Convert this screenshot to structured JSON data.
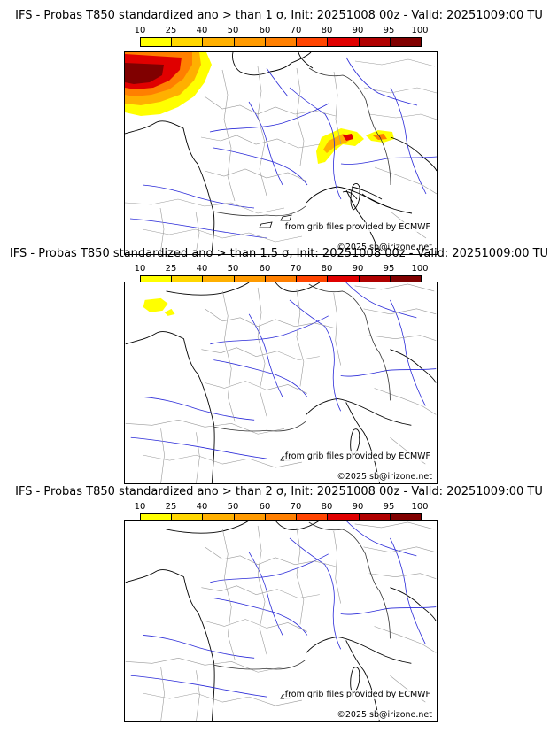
{
  "scale": {
    "labels": [
      "10",
      "25",
      "40",
      "50",
      "60",
      "70",
      "80",
      "90",
      "95",
      "100"
    ],
    "colors": [
      "#ffff00",
      "#ffd700",
      "#ffb000",
      "#ff9a00",
      "#ff7f00",
      "#ff4400",
      "#e00000",
      "#b00000",
      "#800000",
      "#550000"
    ]
  },
  "credits": {
    "source": "from grib files provided by ECMWF",
    "copyright": "©2025 sb@irizone.net"
  },
  "panels": [
    {
      "title": "IFS - Probas T850  standardized ano > than 1 σ, Init: 20251008 00z - Valid: 20251009:00 TU"
    },
    {
      "title": "IFS - Probas T850  standardized ano > than 1.5 σ, Init: 20251008 00z - Valid: 20251009:00 TU"
    },
    {
      "title": "IFS - Probas T850  standardized ano > than 2 σ, Init: 20251008 00z - Valid: 20251009:00 TU"
    }
  ]
}
